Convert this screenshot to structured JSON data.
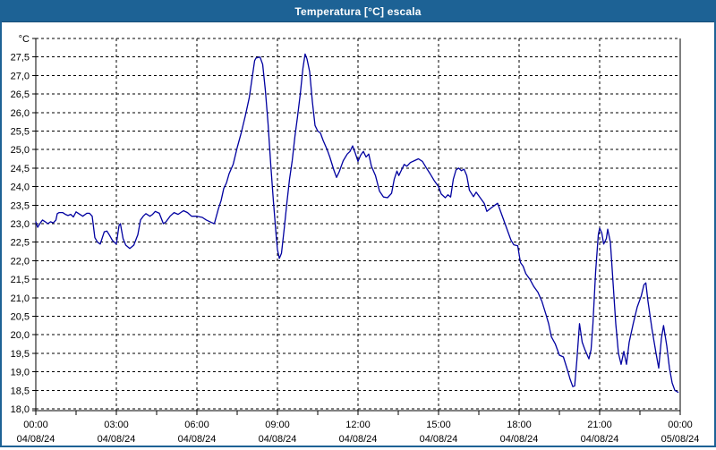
{
  "window": {
    "title": "Temperatura [°C] escala"
  },
  "colors": {
    "frame": "#1d6295",
    "titlebar_bg": "#1d6295",
    "titlebar_text": "#ffffff",
    "plot_bg": "#ffffff",
    "grid": "#000000",
    "axis": "#000000",
    "line": "#0000a0"
  },
  "chart_data": {
    "type": "line",
    "title": "Temperatura [°C] escala",
    "unit_label": "°C",
    "xlabel": "",
    "ylabel": "°C",
    "ylim": [
      18.0,
      28.0
    ],
    "xlim_hours": [
      0,
      24
    ],
    "grid": "dashed; horizontal every 0.5 °C, vertical every 3 h",
    "legend": "none",
    "y_ticks": {
      "values": [
        27.5,
        27.0,
        26.5,
        26.0,
        25.5,
        25.0,
        24.5,
        24.0,
        23.5,
        23.0,
        22.5,
        22.0,
        21.5,
        21.0,
        20.5,
        20.0,
        19.5,
        19.0,
        18.5,
        18.0
      ],
      "labels": [
        "27,5",
        "27,0",
        "26,5",
        "26,0",
        "25,5",
        "25,0",
        "24,5",
        "24,0",
        "23,5",
        "23,0",
        "22,5",
        "22,0",
        "21,5",
        "21,0",
        "20,5",
        "20,0",
        "19,5",
        "19,0",
        "18,5",
        "18,0"
      ]
    },
    "x_ticks": [
      {
        "hour": 0,
        "time": "00:00",
        "date": "04/08/24"
      },
      {
        "hour": 3,
        "time": "03:00",
        "date": "04/08/24"
      },
      {
        "hour": 6,
        "time": "06:00",
        "date": "04/08/24"
      },
      {
        "hour": 9,
        "time": "09:00",
        "date": "04/08/24"
      },
      {
        "hour": 12,
        "time": "12:00",
        "date": "04/08/24"
      },
      {
        "hour": 15,
        "time": "15:00",
        "date": "04/08/24"
      },
      {
        "hour": 18,
        "time": "18:00",
        "date": "04/08/24"
      },
      {
        "hour": 21,
        "time": "21:00",
        "date": "04/08/24"
      },
      {
        "hour": 24,
        "time": "00:00",
        "date": "05/08/24"
      }
    ],
    "minor_x_tick_interval_hours": 1.5,
    "series": [
      {
        "name": "Temperatura",
        "color": "#0000a0",
        "points_hour_degC": [
          [
            0.0,
            23.05
          ],
          [
            0.07,
            22.9
          ],
          [
            0.15,
            23.0
          ],
          [
            0.25,
            23.1
          ],
          [
            0.35,
            23.05
          ],
          [
            0.45,
            23.0
          ],
          [
            0.55,
            23.05
          ],
          [
            0.65,
            23.02
          ],
          [
            0.75,
            23.1
          ],
          [
            0.8,
            23.27
          ],
          [
            0.87,
            23.3
          ],
          [
            1.0,
            23.3
          ],
          [
            1.1,
            23.25
          ],
          [
            1.2,
            23.22
          ],
          [
            1.3,
            23.25
          ],
          [
            1.4,
            23.18
          ],
          [
            1.5,
            23.32
          ],
          [
            1.6,
            23.27
          ],
          [
            1.75,
            23.2
          ],
          [
            1.9,
            23.28
          ],
          [
            2.0,
            23.28
          ],
          [
            2.1,
            23.2
          ],
          [
            2.2,
            22.62
          ],
          [
            2.3,
            22.5
          ],
          [
            2.4,
            22.45
          ],
          [
            2.55,
            22.78
          ],
          [
            2.65,
            22.8
          ],
          [
            2.75,
            22.68
          ],
          [
            2.85,
            22.55
          ],
          [
            3.0,
            22.45
          ],
          [
            3.1,
            22.95
          ],
          [
            3.15,
            23.0
          ],
          [
            3.25,
            22.6
          ],
          [
            3.35,
            22.42
          ],
          [
            3.5,
            22.33
          ],
          [
            3.65,
            22.42
          ],
          [
            3.8,
            22.7
          ],
          [
            3.9,
            23.1
          ],
          [
            4.0,
            23.2
          ],
          [
            4.1,
            23.27
          ],
          [
            4.25,
            23.2
          ],
          [
            4.35,
            23.25
          ],
          [
            4.45,
            23.33
          ],
          [
            4.6,
            23.28
          ],
          [
            4.75,
            23.0
          ],
          [
            4.85,
            23.05
          ],
          [
            5.0,
            23.2
          ],
          [
            5.15,
            23.3
          ],
          [
            5.3,
            23.25
          ],
          [
            5.5,
            23.35
          ],
          [
            5.65,
            23.3
          ],
          [
            5.8,
            23.2
          ],
          [
            6.0,
            23.2
          ],
          [
            6.2,
            23.17
          ],
          [
            6.35,
            23.1
          ],
          [
            6.55,
            23.03
          ],
          [
            6.65,
            23.0
          ],
          [
            6.8,
            23.4
          ],
          [
            6.9,
            23.62
          ],
          [
            7.0,
            23.95
          ],
          [
            7.1,
            24.1
          ],
          [
            7.2,
            24.35
          ],
          [
            7.35,
            24.6
          ],
          [
            7.5,
            25.05
          ],
          [
            7.65,
            25.45
          ],
          [
            7.8,
            25.9
          ],
          [
            7.95,
            26.4
          ],
          [
            8.05,
            26.9
          ],
          [
            8.15,
            27.4
          ],
          [
            8.2,
            27.47
          ],
          [
            8.35,
            27.5
          ],
          [
            8.45,
            27.3
          ],
          [
            8.55,
            26.6
          ],
          [
            8.65,
            25.7
          ],
          [
            8.75,
            24.6
          ],
          [
            8.85,
            23.6
          ],
          [
            8.95,
            22.7
          ],
          [
            9.0,
            22.3
          ],
          [
            9.07,
            22.06
          ],
          [
            9.15,
            22.2
          ],
          [
            9.25,
            22.85
          ],
          [
            9.35,
            23.55
          ],
          [
            9.45,
            24.2
          ],
          [
            9.55,
            24.7
          ],
          [
            9.65,
            25.35
          ],
          [
            9.75,
            25.9
          ],
          [
            9.85,
            26.5
          ],
          [
            9.95,
            27.2
          ],
          [
            10.03,
            27.58
          ],
          [
            10.1,
            27.45
          ],
          [
            10.2,
            27.1
          ],
          [
            10.3,
            26.3
          ],
          [
            10.4,
            25.65
          ],
          [
            10.5,
            25.5
          ],
          [
            10.6,
            25.45
          ],
          [
            10.7,
            25.25
          ],
          [
            10.85,
            25.0
          ],
          [
            10.95,
            24.8
          ],
          [
            11.1,
            24.45
          ],
          [
            11.2,
            24.25
          ],
          [
            11.3,
            24.4
          ],
          [
            11.45,
            24.7
          ],
          [
            11.6,
            24.88
          ],
          [
            11.7,
            24.95
          ],
          [
            11.8,
            25.1
          ],
          [
            11.9,
            24.9
          ],
          [
            12.0,
            24.68
          ],
          [
            12.1,
            24.85
          ],
          [
            12.2,
            24.95
          ],
          [
            12.3,
            24.8
          ],
          [
            12.4,
            24.88
          ],
          [
            12.5,
            24.55
          ],
          [
            12.65,
            24.3
          ],
          [
            12.8,
            23.88
          ],
          [
            12.95,
            23.72
          ],
          [
            13.1,
            23.7
          ],
          [
            13.25,
            23.82
          ],
          [
            13.35,
            24.2
          ],
          [
            13.45,
            24.42
          ],
          [
            13.52,
            24.3
          ],
          [
            13.62,
            24.45
          ],
          [
            13.72,
            24.6
          ],
          [
            13.82,
            24.55
          ],
          [
            13.95,
            24.65
          ],
          [
            14.1,
            24.7
          ],
          [
            14.25,
            24.75
          ],
          [
            14.4,
            24.68
          ],
          [
            14.55,
            24.5
          ],
          [
            14.7,
            24.33
          ],
          [
            14.85,
            24.15
          ],
          [
            15.0,
            24.0
          ],
          [
            15.1,
            23.8
          ],
          [
            15.25,
            23.7
          ],
          [
            15.35,
            23.78
          ],
          [
            15.45,
            23.72
          ],
          [
            15.55,
            24.2
          ],
          [
            15.65,
            24.45
          ],
          [
            15.75,
            24.5
          ],
          [
            15.85,
            24.43
          ],
          [
            15.95,
            24.47
          ],
          [
            16.05,
            24.3
          ],
          [
            16.15,
            23.9
          ],
          [
            16.3,
            23.73
          ],
          [
            16.4,
            23.85
          ],
          [
            16.55,
            23.7
          ],
          [
            16.7,
            23.55
          ],
          [
            16.8,
            23.33
          ],
          [
            16.95,
            23.42
          ],
          [
            17.1,
            23.5
          ],
          [
            17.2,
            23.55
          ],
          [
            17.3,
            23.35
          ],
          [
            17.45,
            23.05
          ],
          [
            17.6,
            22.75
          ],
          [
            17.7,
            22.55
          ],
          [
            17.8,
            22.43
          ],
          [
            17.95,
            22.4
          ],
          [
            18.05,
            21.95
          ],
          [
            18.15,
            21.85
          ],
          [
            18.25,
            21.65
          ],
          [
            18.4,
            21.5
          ],
          [
            18.55,
            21.3
          ],
          [
            18.7,
            21.15
          ],
          [
            18.85,
            20.9
          ],
          [
            19.0,
            20.55
          ],
          [
            19.1,
            20.3
          ],
          [
            19.2,
            19.95
          ],
          [
            19.35,
            19.75
          ],
          [
            19.5,
            19.45
          ],
          [
            19.65,
            19.4
          ],
          [
            19.8,
            19.05
          ],
          [
            19.9,
            18.8
          ],
          [
            20.0,
            18.6
          ],
          [
            20.07,
            18.62
          ],
          [
            20.15,
            19.3
          ],
          [
            20.25,
            20.3
          ],
          [
            20.35,
            19.8
          ],
          [
            20.45,
            19.6
          ],
          [
            20.6,
            19.35
          ],
          [
            20.68,
            19.6
          ],
          [
            20.75,
            20.3
          ],
          [
            20.85,
            21.7
          ],
          [
            20.95,
            22.7
          ],
          [
            21.0,
            22.88
          ],
          [
            21.08,
            22.75
          ],
          [
            21.15,
            22.45
          ],
          [
            21.25,
            22.6
          ],
          [
            21.3,
            22.85
          ],
          [
            21.4,
            22.5
          ],
          [
            21.5,
            21.4
          ],
          [
            21.6,
            20.3
          ],
          [
            21.7,
            19.5
          ],
          [
            21.8,
            19.2
          ],
          [
            21.9,
            19.55
          ],
          [
            22.0,
            19.2
          ],
          [
            22.1,
            19.8
          ],
          [
            22.25,
            20.3
          ],
          [
            22.4,
            20.75
          ],
          [
            22.55,
            21.05
          ],
          [
            22.65,
            21.35
          ],
          [
            22.72,
            21.4
          ],
          [
            22.8,
            20.9
          ],
          [
            22.95,
            20.15
          ],
          [
            23.1,
            19.5
          ],
          [
            23.2,
            19.1
          ],
          [
            23.3,
            19.9
          ],
          [
            23.38,
            20.25
          ],
          [
            23.5,
            19.7
          ],
          [
            23.6,
            19.1
          ],
          [
            23.7,
            18.7
          ],
          [
            23.8,
            18.5
          ],
          [
            23.92,
            18.45
          ]
        ]
      }
    ]
  }
}
